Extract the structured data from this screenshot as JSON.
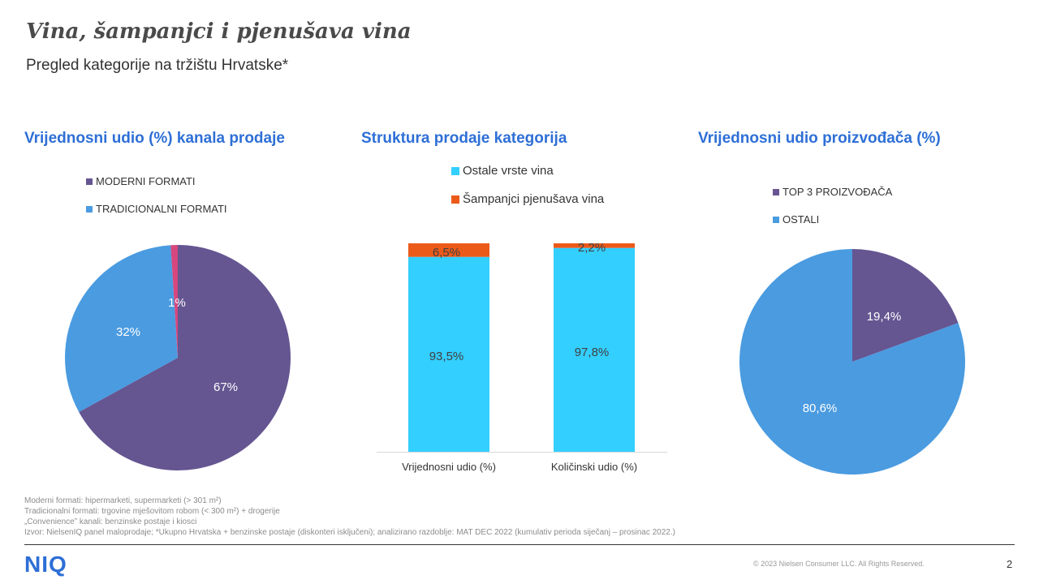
{
  "header": {
    "title": "Vina, šampanjci i pjenušava vina",
    "subtitle": "Pregled kategorije na tržištu Hrvatske*"
  },
  "colors": {
    "accent": "#2e6fd6",
    "purple": "#655591",
    "light_blue": "#4a9be0",
    "pink": "#d6477e",
    "cyan": "#33cfff",
    "orange": "#ec5a1a"
  },
  "chart_data": [
    {
      "type": "pie",
      "title": "Vrijednosni  udio (%) kanala prodaje",
      "legend": [
        {
          "label": "MODERNI FORMATI",
          "color": "#655591"
        },
        {
          "label": "TRADICIONALNI FORMATI",
          "color": "#4a9be0"
        }
      ],
      "slices": [
        {
          "value": 67,
          "label": "67%",
          "color": "#655591"
        },
        {
          "value": 32,
          "label": "32%",
          "color": "#4a9be0"
        },
        {
          "value": 1,
          "label": "1%",
          "color": "#d6477e"
        }
      ]
    },
    {
      "type": "bar",
      "stacked": true,
      "title": "Struktura prodaje kategorija",
      "categories": [
        "Vrijednosni udio (%)",
        "Količinski udio (%)"
      ],
      "series": [
        {
          "name": "Ostale vrste vina",
          "values": [
            93.5,
            97.8
          ],
          "labels": [
            "93,5%",
            "97,8%"
          ],
          "color": "#33cfff"
        },
        {
          "name": "Šampanjci pjenušava vina",
          "values": [
            6.5,
            2.2
          ],
          "labels": [
            "6,5%",
            "2,2%"
          ],
          "color": "#ec5a1a"
        }
      ],
      "ylim": [
        0,
        100
      ],
      "legend_position": "top"
    },
    {
      "type": "pie",
      "title": "Vrijednosni  udio proizvođača (%)",
      "legend": [
        {
          "label": "TOP 3 PROIZVOĐAČA",
          "color": "#655591"
        },
        {
          "label": "OSTALI",
          "color": "#4a9be0"
        }
      ],
      "slices": [
        {
          "value": 19.4,
          "label": "19,4%",
          "color": "#655591"
        },
        {
          "value": 80.6,
          "label": "80,6%",
          "color": "#4a9be0"
        }
      ]
    }
  ],
  "footnotes": [
    "Moderni formati: hipermarketi, supermarketi (> 301 m²)",
    "Tradicionalni formati: trgovine mješovitom robom (< 300 m²) + drogerije",
    "„Convenience” kanali: benzinske postaje i kiosci",
    "Izvor: NielsenIQ panel maloprodaje; *Ukupno Hrvatska + benzinske postaje (diskonteri isključeni); analizirano razdoblje: MAT DEC 2022 (kumulativ perioda siječanj – prosinac 2022.)"
  ],
  "footer": {
    "logo": "NIQ",
    "copyright": "© 2023 Nielsen Consumer LLC. All Rights Reserved.",
    "page_number": "2"
  }
}
